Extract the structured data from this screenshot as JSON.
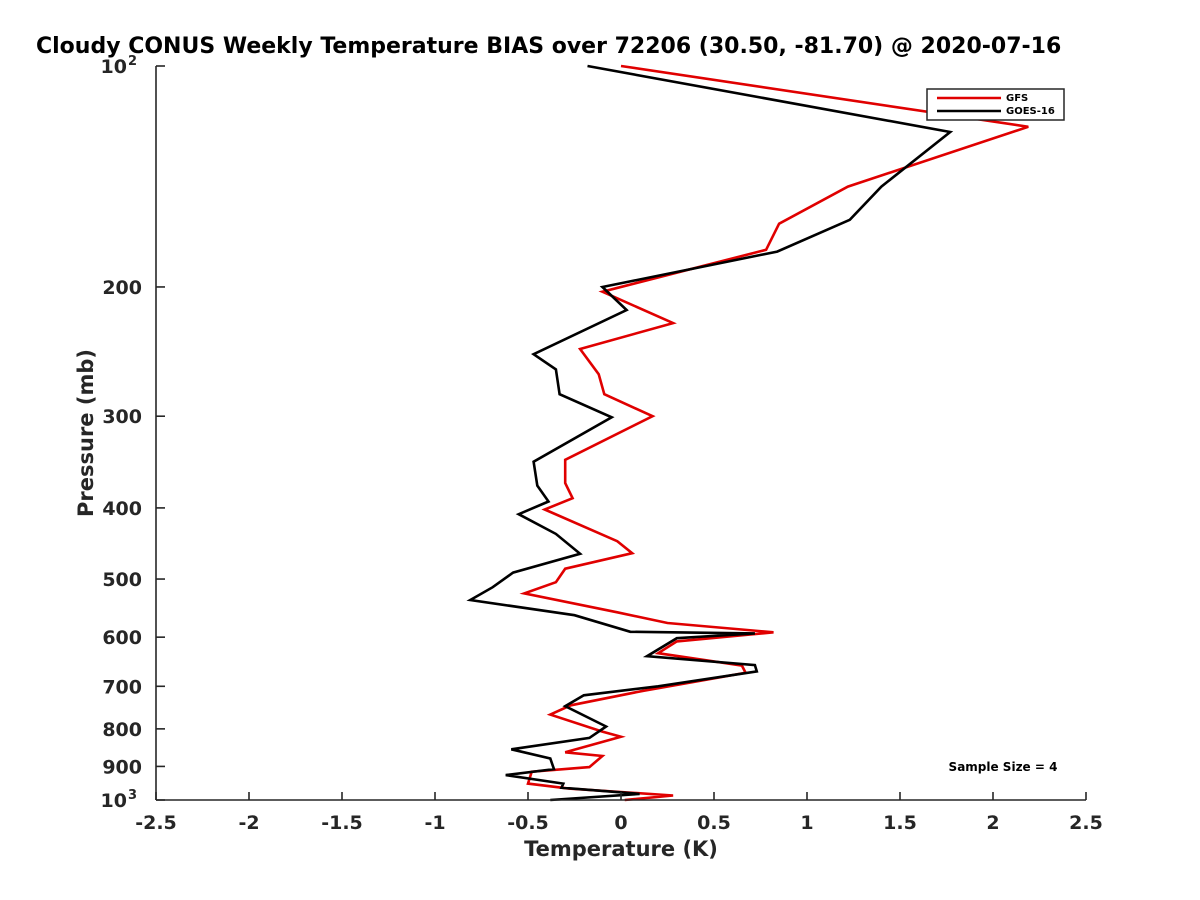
{
  "chart_data": {
    "type": "line",
    "title": "Cloudy CONUS Weekly Temperature BIAS over 72206 (30.50, -81.70) @ 2020-07-16",
    "xlabel": "Temperature (K)",
    "ylabel": "Pressure (mb)",
    "xlim": [
      -2.5,
      2.5
    ],
    "ylim": [
      100,
      1000
    ],
    "yscale": "log",
    "y_reversed": true,
    "grid": false,
    "x_ticks": [
      {
        "value": -2.5,
        "label": "-2.5"
      },
      {
        "value": -2,
        "label": "-2"
      },
      {
        "value": -1.5,
        "label": "-1.5"
      },
      {
        "value": -1,
        "label": "-1"
      },
      {
        "value": -0.5,
        "label": "-0.5"
      },
      {
        "value": 0,
        "label": "0"
      },
      {
        "value": 0.5,
        "label": "0.5"
      },
      {
        "value": 1,
        "label": "1"
      },
      {
        "value": 1.5,
        "label": "1.5"
      },
      {
        "value": 2,
        "label": "2"
      },
      {
        "value": 2.5,
        "label": "2.5"
      }
    ],
    "y_ticks": [
      {
        "value": 100,
        "label": "10",
        "exponent": "2"
      },
      {
        "value": 200,
        "label": "200"
      },
      {
        "value": 300,
        "label": "300"
      },
      {
        "value": 400,
        "label": "400"
      },
      {
        "value": 500,
        "label": "500"
      },
      {
        "value": 600,
        "label": "600"
      },
      {
        "value": 700,
        "label": "700"
      },
      {
        "value": 800,
        "label": "800"
      },
      {
        "value": 900,
        "label": "900"
      },
      {
        "value": 1000,
        "label": "10",
        "exponent": "3"
      }
    ],
    "legend_position": "top-right",
    "series": [
      {
        "name": "GFS",
        "color": "#e00000",
        "points": [
          {
            "t": 0.0,
            "p": 100
          },
          {
            "t": 2.19,
            "p": 121
          },
          {
            "t": 1.22,
            "p": 146
          },
          {
            "t": 0.85,
            "p": 164
          },
          {
            "t": 0.78,
            "p": 178
          },
          {
            "t": -0.1,
            "p": 203
          },
          {
            "t": 0.28,
            "p": 224
          },
          {
            "t": -0.22,
            "p": 243
          },
          {
            "t": -0.12,
            "p": 263
          },
          {
            "t": -0.09,
            "p": 280
          },
          {
            "t": 0.17,
            "p": 300
          },
          {
            "t": -0.3,
            "p": 344
          },
          {
            "t": -0.3,
            "p": 370
          },
          {
            "t": -0.26,
            "p": 388
          },
          {
            "t": -0.41,
            "p": 402
          },
          {
            "t": -0.02,
            "p": 444
          },
          {
            "t": 0.06,
            "p": 461
          },
          {
            "t": -0.3,
            "p": 484
          },
          {
            "t": -0.35,
            "p": 505
          },
          {
            "t": -0.52,
            "p": 523
          },
          {
            "t": -0.02,
            "p": 555
          },
          {
            "t": 0.25,
            "p": 574
          },
          {
            "t": 0.82,
            "p": 591
          },
          {
            "t": 0.3,
            "p": 608
          },
          {
            "t": 0.2,
            "p": 631
          },
          {
            "t": 0.65,
            "p": 656
          },
          {
            "t": 0.67,
            "p": 671
          },
          {
            "t": 0.12,
            "p": 710
          },
          {
            "t": -0.27,
            "p": 743
          },
          {
            "t": -0.38,
            "p": 765
          },
          {
            "t": -0.1,
            "p": 807
          },
          {
            "t": 0.0,
            "p": 820
          },
          {
            "t": -0.3,
            "p": 861
          },
          {
            "t": -0.1,
            "p": 871
          },
          {
            "t": -0.17,
            "p": 902
          },
          {
            "t": -0.48,
            "p": 915
          },
          {
            "t": -0.5,
            "p": 950
          },
          {
            "t": -0.28,
            "p": 965
          },
          {
            "t": 0.28,
            "p": 986
          },
          {
            "t": 0.02,
            "p": 1000
          }
        ]
      },
      {
        "name": "GOES-16",
        "color": "#000000",
        "points": [
          {
            "t": -0.18,
            "p": 100
          },
          {
            "t": 1.77,
            "p": 123
          },
          {
            "t": 1.4,
            "p": 146
          },
          {
            "t": 1.23,
            "p": 162
          },
          {
            "t": 0.84,
            "p": 179
          },
          {
            "t": -0.1,
            "p": 200
          },
          {
            "t": 0.03,
            "p": 215
          },
          {
            "t": -0.47,
            "p": 247
          },
          {
            "t": -0.35,
            "p": 259
          },
          {
            "t": -0.33,
            "p": 280
          },
          {
            "t": -0.05,
            "p": 301
          },
          {
            "t": -0.47,
            "p": 346
          },
          {
            "t": -0.45,
            "p": 373
          },
          {
            "t": -0.39,
            "p": 392
          },
          {
            "t": -0.55,
            "p": 408
          },
          {
            "t": -0.35,
            "p": 434
          },
          {
            "t": -0.22,
            "p": 462
          },
          {
            "t": -0.58,
            "p": 490
          },
          {
            "t": -0.69,
            "p": 513
          },
          {
            "t": -0.81,
            "p": 534
          },
          {
            "t": -0.25,
            "p": 560
          },
          {
            "t": 0.05,
            "p": 590
          },
          {
            "t": 0.72,
            "p": 593
          },
          {
            "t": 0.3,
            "p": 602
          },
          {
            "t": 0.14,
            "p": 637
          },
          {
            "t": 0.72,
            "p": 655
          },
          {
            "t": 0.73,
            "p": 668
          },
          {
            "t": 0.2,
            "p": 700
          },
          {
            "t": -0.2,
            "p": 720
          },
          {
            "t": -0.3,
            "p": 745
          },
          {
            "t": -0.08,
            "p": 794
          },
          {
            "t": -0.17,
            "p": 823
          },
          {
            "t": -0.59,
            "p": 853
          },
          {
            "t": -0.38,
            "p": 878
          },
          {
            "t": -0.36,
            "p": 908
          },
          {
            "t": -0.62,
            "p": 925
          },
          {
            "t": -0.31,
            "p": 950
          },
          {
            "t": -0.32,
            "p": 962
          },
          {
            "t": 0.1,
            "p": 981
          },
          {
            "t": -0.38,
            "p": 1000
          }
        ]
      }
    ],
    "annotations": [
      "Sample Size = 4"
    ]
  }
}
